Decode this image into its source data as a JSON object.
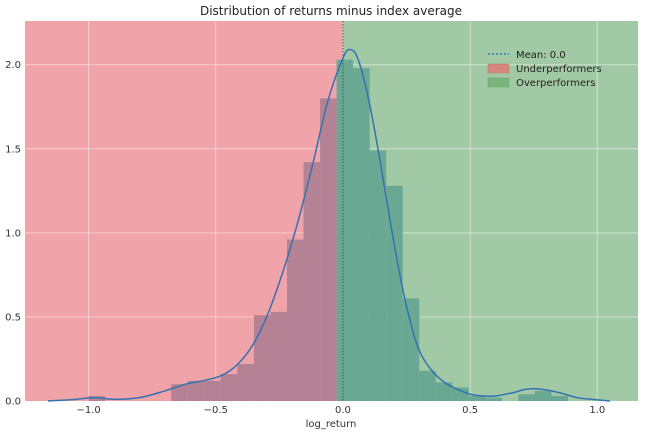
{
  "chart_data": {
    "type": "histogram",
    "title": "Distribution of returns minus index average",
    "xlabel": "log_return",
    "ylabel": "",
    "xlim": [
      -1.25,
      1.16
    ],
    "ylim": [
      0,
      2.26
    ],
    "xticks": [
      -1.0,
      -0.5,
      0.0,
      0.5,
      1.0
    ],
    "xtick_labels": [
      "−1.0",
      "−0.5",
      "0.0",
      "0.5",
      "1.0"
    ],
    "yticks": [
      0.0,
      0.5,
      1.0,
      1.5,
      2.0
    ],
    "ytick_labels": [
      "0.0",
      "0.5",
      "1.0",
      "1.5",
      "2.0"
    ],
    "grid": true,
    "mean": 0.0,
    "legend": {
      "position": "top-right",
      "entries": [
        {
          "label": "Mean: 0.0",
          "kind": "dotted-line"
        },
        {
          "label": "Underperformers",
          "kind": "patch"
        },
        {
          "label": "Overperformers",
          "kind": "patch"
        }
      ]
    },
    "regions": [
      {
        "name": "underperformers",
        "x0": -1.25,
        "x1": 0.0,
        "color": "#f0a3a8"
      },
      {
        "name": "overperformers",
        "x0": 0.0,
        "x1": 1.16,
        "color": "#a2c9a6"
      }
    ],
    "bins": [
      {
        "x0": -1.0,
        "x1": -0.935,
        "height": 0.03
      },
      {
        "x0": -0.675,
        "x1": -0.61,
        "height": 0.1
      },
      {
        "x0": -0.61,
        "x1": -0.545,
        "height": 0.12
      },
      {
        "x0": -0.545,
        "x1": -0.48,
        "height": 0.12
      },
      {
        "x0": -0.48,
        "x1": -0.415,
        "height": 0.16
      },
      {
        "x0": -0.415,
        "x1": -0.35,
        "height": 0.22
      },
      {
        "x0": -0.35,
        "x1": -0.285,
        "height": 0.51
      },
      {
        "x0": -0.285,
        "x1": -0.22,
        "height": 0.53
      },
      {
        "x0": -0.22,
        "x1": -0.155,
        "height": 0.96
      },
      {
        "x0": -0.155,
        "x1": -0.09,
        "height": 1.42
      },
      {
        "x0": -0.09,
        "x1": -0.025,
        "height": 1.8
      },
      {
        "x0": -0.025,
        "x1": 0.04,
        "height": 2.03
      },
      {
        "x0": 0.04,
        "x1": 0.105,
        "height": 1.98
      },
      {
        "x0": 0.105,
        "x1": 0.17,
        "height": 1.49
      },
      {
        "x0": 0.17,
        "x1": 0.235,
        "height": 1.28
      },
      {
        "x0": 0.235,
        "x1": 0.3,
        "height": 0.61
      },
      {
        "x0": 0.3,
        "x1": 0.365,
        "height": 0.18
      },
      {
        "x0": 0.365,
        "x1": 0.43,
        "height": 0.11
      },
      {
        "x0": 0.43,
        "x1": 0.495,
        "height": 0.08
      },
      {
        "x0": 0.495,
        "x1": 0.56,
        "height": 0.03
      },
      {
        "x0": 0.56,
        "x1": 0.625,
        "height": 0.02
      },
      {
        "x0": 0.69,
        "x1": 0.755,
        "height": 0.04
      },
      {
        "x0": 0.755,
        "x1": 0.82,
        "height": 0.06
      },
      {
        "x0": 0.82,
        "x1": 0.885,
        "height": 0.03
      }
    ],
    "kde": {
      "x": [
        -1.16,
        -1.05,
        -0.98,
        -0.9,
        -0.8,
        -0.7,
        -0.62,
        -0.55,
        -0.48,
        -0.42,
        -0.36,
        -0.3,
        -0.24,
        -0.18,
        -0.12,
        -0.06,
        0.0,
        0.03,
        0.06,
        0.1,
        0.14,
        0.18,
        0.22,
        0.26,
        0.3,
        0.35,
        0.4,
        0.45,
        0.5,
        0.55,
        0.6,
        0.67,
        0.72,
        0.78,
        0.85,
        0.92,
        0.98,
        1.05
      ],
      "y": [
        0.0,
        0.01,
        0.02,
        0.01,
        0.02,
        0.06,
        0.1,
        0.12,
        0.15,
        0.21,
        0.32,
        0.5,
        0.75,
        1.05,
        1.4,
        1.78,
        2.04,
        2.09,
        2.03,
        1.8,
        1.48,
        1.12,
        0.78,
        0.5,
        0.3,
        0.18,
        0.11,
        0.07,
        0.04,
        0.03,
        0.03,
        0.05,
        0.07,
        0.07,
        0.05,
        0.02,
        0.01,
        0.0
      ]
    },
    "colors": {
      "bars_neg": "#b48294",
      "bars_pos": "#6aa893",
      "kde": "#3472b0",
      "mean_line": "#3a5a5a",
      "legend_under": "#d4877c",
      "legend_over": "#7bb47b",
      "legend_mean": "#2b7bb9"
    }
  }
}
